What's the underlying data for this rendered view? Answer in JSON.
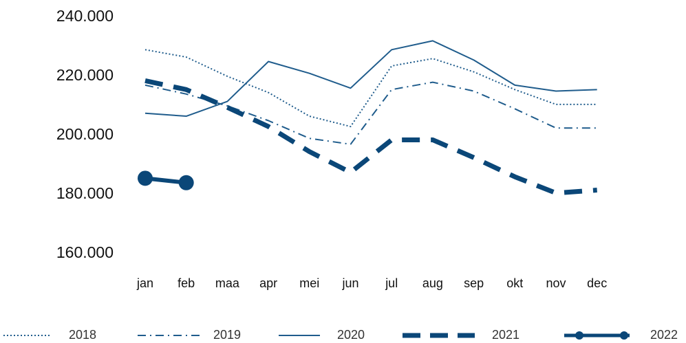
{
  "chart_data": {
    "type": "line",
    "categories": [
      "jan",
      "feb",
      "maa",
      "apr",
      "mei",
      "jun",
      "jul",
      "aug",
      "sep",
      "okt",
      "nov",
      "dec"
    ],
    "series": [
      {
        "name": "2018",
        "color": "#1f5c8c",
        "style": "dotted",
        "values": [
          229000,
          226500,
          220000,
          214500,
          206500,
          203000,
          223500,
          226000,
          221500,
          215500,
          210500,
          210500
        ]
      },
      {
        "name": "2019",
        "color": "#1f5c8c",
        "style": "dashdot",
        "values": [
          217000,
          214000,
          210000,
          205000,
          199000,
          197000,
          215500,
          218000,
          215000,
          209000,
          202500,
          202500
        ]
      },
      {
        "name": "2020",
        "color": "#1f5c8c",
        "style": "solid",
        "values": [
          207500,
          206500,
          211500,
          225000,
          221000,
          216000,
          229000,
          232000,
          225500,
          217000,
          215000,
          215500
        ]
      },
      {
        "name": "2021",
        "color": "#0b4778",
        "style": "dashed",
        "values": [
          218500,
          215500,
          209500,
          203000,
          194500,
          187500,
          198500,
          198500,
          192500,
          186000,
          180500,
          181500
        ]
      },
      {
        "name": "2022",
        "color": "#0b4778",
        "style": "marker",
        "values": [
          185500,
          184000,
          null,
          null,
          null,
          null,
          null,
          null,
          null,
          null,
          null,
          null
        ]
      }
    ],
    "ylim": [
      160000,
      240000
    ],
    "yticks": [
      {
        "value": 160000,
        "label": "160.000"
      },
      {
        "value": 180000,
        "label": "180.000"
      },
      {
        "value": 200000,
        "label": "200.000"
      },
      {
        "value": 220000,
        "label": "220.000"
      },
      {
        "value": 240000,
        "label": "240.000"
      }
    ],
    "grid": false
  }
}
